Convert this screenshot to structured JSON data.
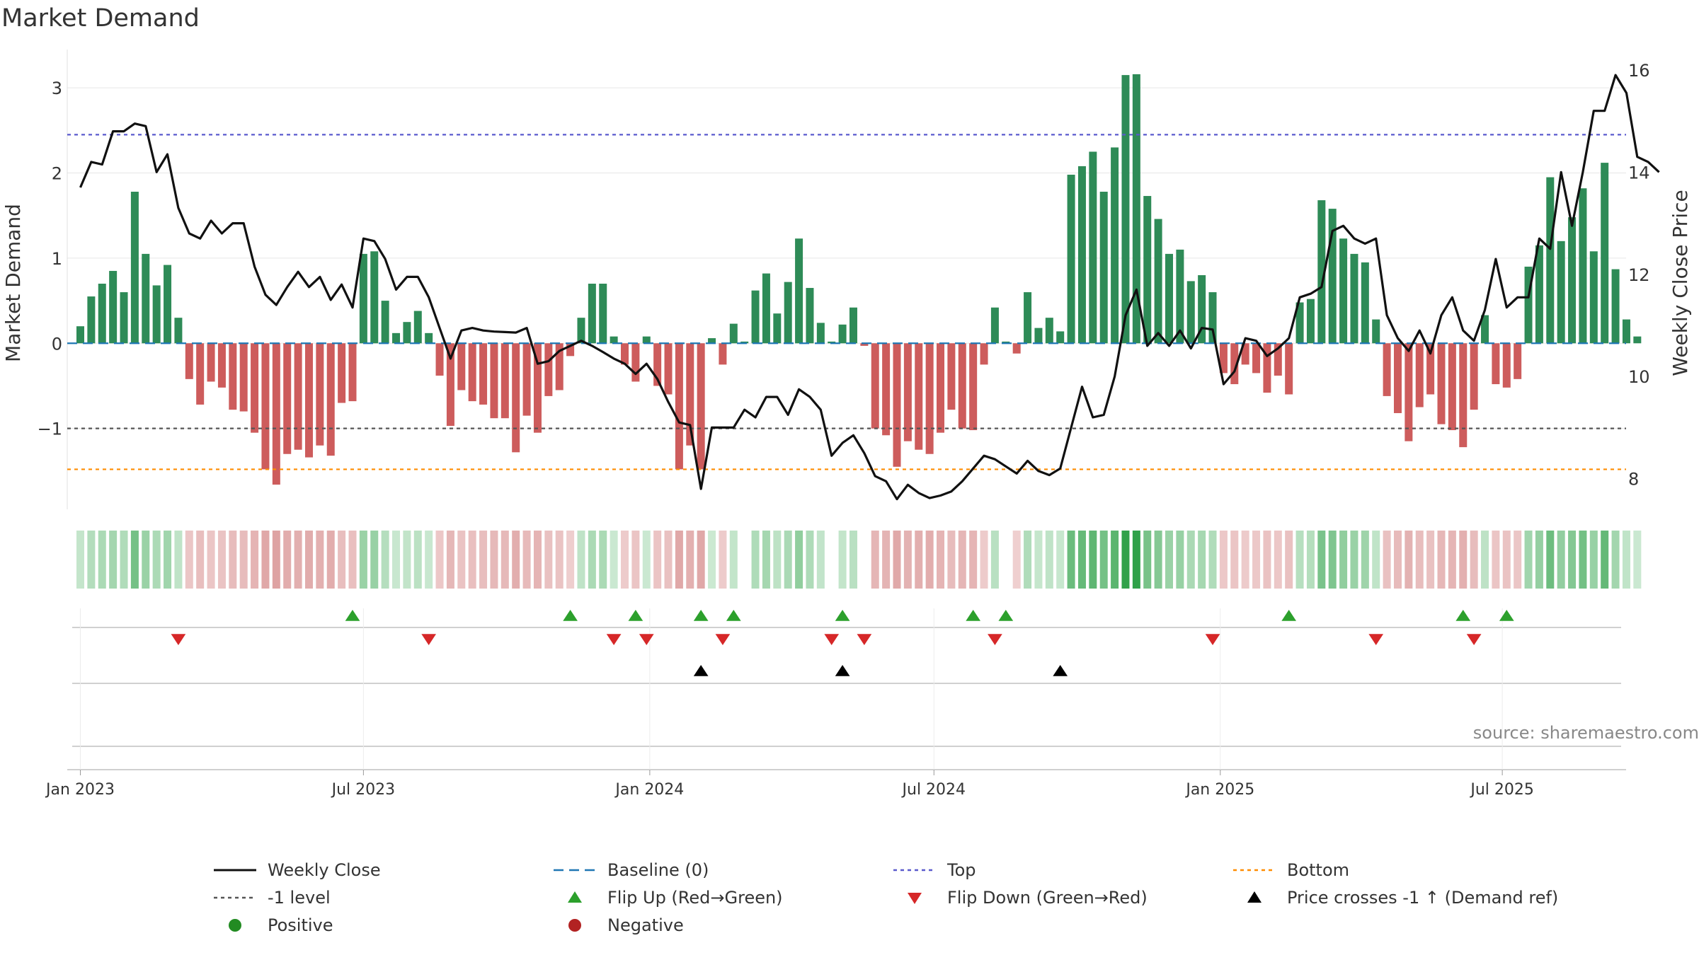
{
  "title": "Market Demand",
  "source": "source: sharemaestro.com",
  "colors": {
    "positive": "#2e8b57",
    "negative": "#cd5c5c",
    "close": "#111111",
    "baseline": "#1f77b4",
    "top": "#5a5acd",
    "bottom": "#ff8c00",
    "neg_level": "#555555",
    "flip_up": "#2ca02c",
    "flip_down": "#d62728",
    "cross": "#000000",
    "legend_pos": "#228b22",
    "legend_neg": "#b22222"
  },
  "chart_data": {
    "type": "bar",
    "title": "Market Demand",
    "ylabel": "Market Demand",
    "y2label": "Weekly Close Price",
    "ylim": [
      -1.95,
      3.45
    ],
    "y2lim": [
      7.4,
      16.4
    ],
    "yticks": [
      {
        "value": 3,
        "label": "3"
      },
      {
        "value": 2,
        "label": "2"
      },
      {
        "value": 1,
        "label": "1"
      },
      {
        "value": 0,
        "label": "0"
      },
      {
        "value": -1,
        "label": "−1"
      }
    ],
    "y2ticks": [
      {
        "value": 16,
        "label": "16"
      },
      {
        "value": 14,
        "label": "14"
      },
      {
        "value": 12,
        "label": "12"
      },
      {
        "value": 10,
        "label": "10"
      },
      {
        "value": 8,
        "label": "8"
      }
    ],
    "x_start_week_offset": -0.3,
    "xticks": [
      {
        "week": 0,
        "label": "Jan 2023"
      },
      {
        "week": 26,
        "label": "Jul 2023"
      },
      {
        "week": 52.3,
        "label": "Jan 2024"
      },
      {
        "week": 78.4,
        "label": "Jul 2024"
      },
      {
        "week": 104.7,
        "label": "Jan 2025"
      },
      {
        "week": 130.6,
        "label": "Jul 2025"
      }
    ],
    "top_level": 2.45,
    "bottom_level": -1.48,
    "neg_level": -1.0,
    "demand": [
      0.2,
      0.55,
      0.7,
      0.85,
      0.6,
      1.78,
      1.05,
      0.68,
      0.92,
      0.3,
      -0.42,
      -0.72,
      -0.45,
      -0.52,
      -0.78,
      -0.8,
      -1.05,
      -1.48,
      -1.66,
      -1.3,
      -1.25,
      -1.34,
      -1.2,
      -1.32,
      -0.7,
      -0.68,
      1.05,
      1.08,
      0.5,
      0.12,
      0.25,
      0.38,
      0.12,
      -0.38,
      -0.97,
      -0.55,
      -0.68,
      -0.72,
      -0.88,
      -0.88,
      -1.28,
      -0.85,
      -1.05,
      -0.62,
      -0.55,
      -0.15,
      0.3,
      0.7,
      0.7,
      0.08,
      -0.25,
      -0.45,
      0.08,
      -0.5,
      -0.6,
      -1.48,
      -1.2,
      -1.48,
      0.06,
      -0.25,
      0.23,
      0.02,
      0.62,
      0.82,
      0.35,
      0.72,
      1.23,
      0.65,
      0.24,
      0.02,
      0.22,
      0.42,
      -0.03,
      -1.0,
      -1.08,
      -1.45,
      -1.15,
      -1.25,
      -1.3,
      -1.05,
      -0.78,
      -1.0,
      -1.02,
      -0.25,
      0.42,
      0.02,
      -0.12,
      0.6,
      0.18,
      0.3,
      0.14,
      1.98,
      2.08,
      2.25,
      1.78,
      2.3,
      3.15,
      3.16,
      1.73,
      1.46,
      1.05,
      1.1,
      0.73,
      0.8,
      0.6,
      -0.35,
      -0.48,
      -0.25,
      -0.35,
      -0.58,
      -0.38,
      -0.6,
      0.48,
      0.52,
      1.68,
      1.58,
      1.23,
      1.05,
      0.95,
      0.28,
      -0.62,
      -0.82,
      -1.15,
      -0.75,
      -0.6,
      -0.95,
      -1.02,
      -1.22,
      -0.78,
      0.33,
      -0.48,
      -0.52,
      -0.42,
      0.9,
      1.15,
      1.95,
      1.2,
      1.48,
      1.82,
      1.08,
      2.12,
      0.87,
      0.28,
      0.08
    ],
    "close": [
      13.7,
      14.2,
      14.15,
      14.8,
      14.8,
      14.95,
      14.9,
      14.0,
      14.35,
      13.3,
      12.8,
      12.7,
      13.05,
      12.8,
      13.0,
      13.0,
      12.15,
      11.6,
      11.4,
      11.75,
      12.05,
      11.75,
      11.95,
      11.5,
      11.8,
      11.35,
      12.7,
      12.65,
      12.3,
      11.7,
      11.95,
      11.95,
      11.55,
      10.95,
      10.35,
      10.9,
      10.95,
      10.9,
      10.88,
      10.87,
      10.86,
      10.95,
      10.25,
      10.3,
      10.5,
      10.6,
      10.7,
      10.6,
      10.48,
      10.35,
      10.25,
      10.05,
      10.25,
      9.95,
      9.5,
      9.1,
      9.05,
      7.8,
      9.0,
      9.0,
      9.0,
      9.35,
      9.2,
      9.6,
      9.6,
      9.25,
      9.75,
      9.6,
      9.35,
      8.45,
      8.7,
      8.85,
      8.5,
      8.05,
      7.95,
      7.6,
      7.88,
      7.72,
      7.62,
      7.67,
      7.75,
      7.95,
      8.2,
      8.45,
      8.38,
      8.24,
      8.1,
      8.35,
      8.15,
      8.07,
      8.2,
      9.0,
      9.8,
      9.2,
      9.25,
      10.0,
      11.2,
      11.7,
      10.6,
      10.85,
      10.6,
      10.9,
      10.55,
      10.95,
      10.92,
      9.85,
      10.1,
      10.75,
      10.7,
      10.4,
      10.55,
      10.75,
      11.55,
      11.62,
      11.75,
      12.85,
      12.95,
      12.7,
      12.6,
      12.7,
      11.2,
      10.75,
      10.5,
      10.9,
      10.45,
      11.2,
      11.55,
      10.9,
      10.7,
      11.3,
      12.3,
      11.35,
      11.55,
      11.55,
      12.7,
      12.5,
      14.0,
      12.95,
      14.0,
      15.2,
      15.2,
      15.9,
      15.55,
      14.3,
      14.2,
      14.0
    ],
    "flip_up_weeks": [
      25,
      45,
      51,
      57,
      60,
      70,
      82,
      85,
      111,
      127,
      131
    ],
    "flip_down_weeks": [
      9,
      32,
      49,
      52,
      59,
      69,
      72,
      84,
      104,
      119,
      128
    ],
    "cross_weeks": [
      57,
      70,
      90
    ],
    "legend": [
      {
        "key": "close",
        "label": "Weekly Close"
      },
      {
        "key": "baseline",
        "label": "Baseline (0)"
      },
      {
        "key": "top",
        "label": "Top"
      },
      {
        "key": "bottom",
        "label": "Bottom"
      },
      {
        "key": "neg_level",
        "label": "-1 level"
      },
      {
        "key": "flip_up",
        "label": "Flip Up (Red→Green)"
      },
      {
        "key": "flip_down",
        "label": "Flip Down (Green→Red)"
      },
      {
        "key": "cross",
        "label": "Price crosses -1 ↑ (Demand ref)"
      },
      {
        "key": "positive",
        "label": "Positive"
      },
      {
        "key": "negative",
        "label": "Negative"
      }
    ]
  }
}
